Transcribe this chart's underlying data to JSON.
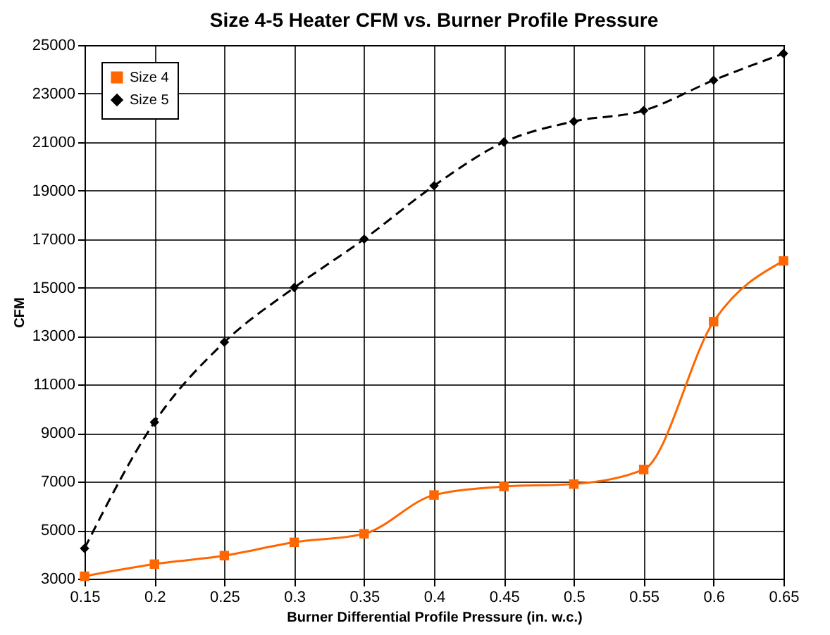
{
  "chart_data": {
    "type": "line",
    "title": "Size 4-5 Heater CFM vs. Burner Profile Pressure",
    "xlabel": "Burner Differential Profile Pressure (in. w.c.)",
    "ylabel": "CFM",
    "x": [
      0.15,
      0.2,
      0.25,
      0.3,
      0.35,
      0.4,
      0.45,
      0.5,
      0.55,
      0.6,
      0.65
    ],
    "series": [
      {
        "name": "Size 4",
        "color": "#ff6600",
        "marker": "square",
        "line_style": "solid",
        "values": [
          3100,
          3600,
          3950,
          4500,
          4850,
          6450,
          6800,
          6900,
          7500,
          13600,
          16100
        ]
      },
      {
        "name": "Size 5",
        "color": "#000000",
        "marker": "diamond",
        "line_style": "dashed",
        "values": [
          4250,
          9450,
          12750,
          15000,
          17000,
          19200,
          21000,
          21850,
          22300,
          23550,
          24650
        ]
      }
    ],
    "xlim": [
      0.15,
      0.65
    ],
    "xticks": [
      0.15,
      0.2,
      0.25,
      0.3,
      0.35,
      0.4,
      0.45,
      0.5,
      0.55,
      0.6,
      0.65
    ],
    "ylim": [
      3000,
      25000
    ],
    "yticks": [
      3000,
      5000,
      7000,
      9000,
      11000,
      13000,
      15000,
      17000,
      19000,
      21000,
      23000,
      25000
    ],
    "grid": true,
    "legend": "top left"
  }
}
